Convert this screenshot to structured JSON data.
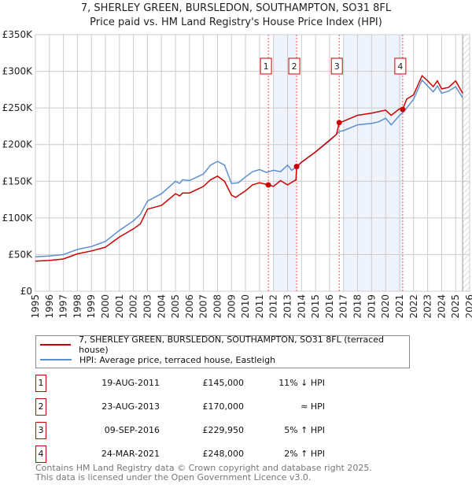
{
  "title": "7, SHERLEY GREEN, BURSLEDON, SOUTHAMPTON, SO31 8FL",
  "subtitle": "Price paid vs. HM Land Registry's House Price Index (HPI)",
  "colors": {
    "property": "#cc0000",
    "hpi": "#5b8fd0",
    "shade": "#eef3fc"
  },
  "chart_data": {
    "type": "line",
    "xlim": [
      1995,
      2026
    ],
    "ylim": [
      0,
      350000
    ],
    "x_ticks": [
      "1995",
      "1996",
      "1997",
      "1998",
      "1999",
      "2000",
      "2001",
      "2002",
      "2003",
      "2004",
      "2005",
      "2006",
      "2007",
      "2008",
      "2009",
      "2010",
      "2011",
      "2012",
      "2013",
      "2014",
      "2015",
      "2016",
      "2017",
      "2018",
      "2019",
      "2020",
      "2021",
      "2022",
      "2023",
      "2024",
      "2025",
      "2026"
    ],
    "y_ticks": [
      {
        "v": 0,
        "label": "£0"
      },
      {
        "v": 50000,
        "label": "£50K"
      },
      {
        "v": 100000,
        "label": "£100K"
      },
      {
        "v": 150000,
        "label": "£150K"
      },
      {
        "v": 200000,
        "label": "£200K"
      },
      {
        "v": 250000,
        "label": "£250K"
      },
      {
        "v": 300000,
        "label": "£300K"
      },
      {
        "v": 350000,
        "label": "£350K"
      }
    ],
    "shaded_periods": [
      [
        2012.0,
        2013.65
      ],
      [
        2017.0,
        2021.22
      ]
    ],
    "forecast_hatch_from": 2025.5,
    "series": [
      {
        "name": "7, SHERLEY GREEN, BURSLEDON, SOUTHAMPTON, SO31 8FL (terraced house)",
        "color": "#cc0000",
        "x": [
          1995,
          1996,
          1997,
          1998,
          1999,
          2000,
          2001,
          2002,
          2002.5,
          2003,
          2004,
          2005,
          2005.3,
          2005.5,
          2006,
          2007,
          2007.5,
          2008,
          2008.5,
          2009,
          2009.3,
          2010,
          2010.5,
          2011,
          2011.63,
          2012,
          2012.5,
          2013,
          2013.6,
          2013.65,
          2014,
          2015,
          2016,
          2016.5,
          2016.69,
          2017,
          2018,
          2019,
          2020,
          2020.4,
          2021,
          2021.22,
          2021.5,
          2022,
          2022.6,
          2023,
          2023.4,
          2023.7,
          2024,
          2024.5,
          2025,
          2025.5
        ],
        "y": [
          41000,
          42000,
          44000,
          51000,
          55000,
          60000,
          74000,
          85000,
          92000,
          112000,
          117000,
          133000,
          130000,
          134000,
          134000,
          143000,
          152000,
          157000,
          150000,
          131000,
          128000,
          137000,
          145000,
          148000,
          145000,
          143000,
          151000,
          145000,
          152000,
          170000,
          176000,
          190000,
          206000,
          214000,
          229950,
          232000,
          240000,
          243000,
          247000,
          240000,
          249000,
          248000,
          262000,
          268000,
          294000,
          287000,
          279000,
          287000,
          276000,
          278000,
          287000,
          270000
        ]
      },
      {
        "name": "HPI: Average price, terraced house, Eastleigh",
        "color": "#5b8fd0",
        "x": [
          1995,
          1996,
          1997,
          1998,
          1999,
          2000,
          2001,
          2002,
          2002.5,
          2003,
          2004,
          2005,
          2005.3,
          2005.5,
          2006,
          2007,
          2007.5,
          2008,
          2008.5,
          2009,
          2009.5,
          2010,
          2010.5,
          2011,
          2011.5,
          2012,
          2012.5,
          2013,
          2013.3,
          2013.65,
          2014,
          2015,
          2016,
          2016.7,
          2017,
          2018,
          2019,
          2019.5,
          2020,
          2020.4,
          2021,
          2021.3,
          2022,
          2022.6,
          2023,
          2023.4,
          2023.7,
          2024,
          2024.5,
          2025,
          2025.5
        ],
        "y": [
          47000,
          48000,
          50000,
          57000,
          61000,
          68000,
          83000,
          96000,
          105000,
          123000,
          133000,
          150000,
          147000,
          152000,
          151000,
          160000,
          172000,
          177000,
          172000,
          147000,
          148000,
          156000,
          163000,
          166000,
          162000,
          165000,
          163000,
          172000,
          165000,
          170000,
          176000,
          190000,
          205000,
          218000,
          219000,
          227000,
          229000,
          231000,
          236000,
          227000,
          240000,
          245000,
          262000,
          288000,
          280000,
          272000,
          280000,
          270000,
          273000,
          279000,
          264000
        ]
      }
    ],
    "sales": [
      {
        "n": "1",
        "x": 2011.63,
        "y": 145000
      },
      {
        "n": "2",
        "x": 2013.65,
        "y": 170000
      },
      {
        "n": "3",
        "x": 2016.69,
        "y": 229950
      },
      {
        "n": "4",
        "x": 2021.22,
        "y": 248000
      }
    ]
  },
  "legend": {
    "property": "7, SHERLEY GREEN, BURSLEDON, SOUTHAMPTON, SO31 8FL (terraced house)",
    "hpi": "HPI: Average price, terraced house, Eastleigh"
  },
  "transactions": [
    {
      "n": "1",
      "date": "19-AUG-2011",
      "price": "£145,000",
      "rel": "11% ↓ HPI"
    },
    {
      "n": "2",
      "date": "23-AUG-2013",
      "price": "£170,000",
      "rel": "≈ HPI"
    },
    {
      "n": "3",
      "date": "09-SEP-2016",
      "price": "£229,950",
      "rel": "5% ↑ HPI"
    },
    {
      "n": "4",
      "date": "24-MAR-2021",
      "price": "£248,000",
      "rel": "2% ↑ HPI"
    }
  ],
  "footer": {
    "line1": "Contains HM Land Registry data © Crown copyright and database right 2025.",
    "line2": "This data is licensed under the Open Government Licence v3.0."
  }
}
